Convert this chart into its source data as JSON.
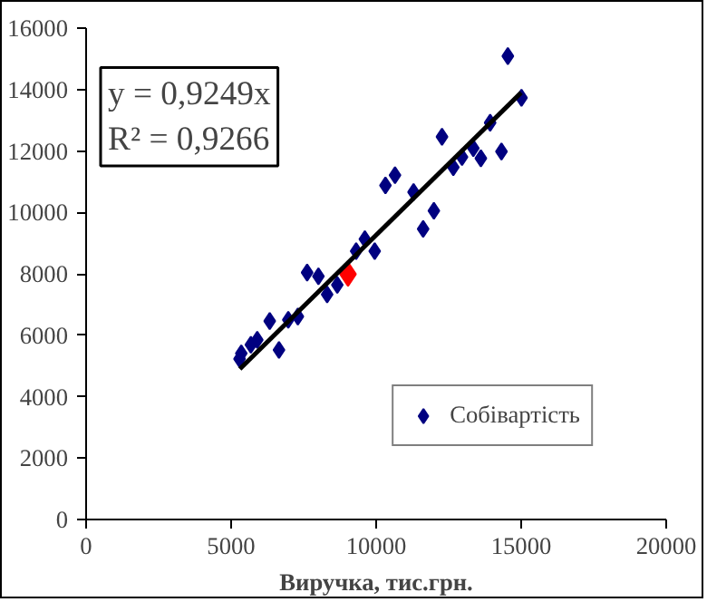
{
  "chart_data": {
    "type": "scatter",
    "xlabel": "Виручка, тис.грн.",
    "xlim": [
      0,
      20000
    ],
    "ylim": [
      0,
      16000
    ],
    "xticks": [
      0,
      5000,
      10000,
      15000,
      20000
    ],
    "yticks": [
      0,
      2000,
      4000,
      6000,
      8000,
      10000,
      12000,
      14000,
      16000
    ],
    "grid": false,
    "legend": "bottom right",
    "annotations": [
      "y = 0,9249x\nR² = 0,9266"
    ],
    "series": [
      {
        "name": "Собівартість",
        "color": "#000080",
        "marker": "diamond",
        "x": [
          14540,
          15010,
          13930,
          12270,
          14320,
          13350,
          12960,
          13610,
          12660,
          10650,
          10320,
          11290,
          11990,
          11620,
          9610,
          9310,
          9950,
          7620,
          8010,
          8660,
          8310,
          7300,
          6970,
          6330,
          6650,
          5900,
          5680,
          5350,
          5290
        ],
        "values": [
          15090,
          13730,
          12920,
          12460,
          11980,
          12090,
          11800,
          11760,
          11470,
          11210,
          10880,
          10660,
          10050,
          9460,
          9130,
          8740,
          8740,
          8040,
          7920,
          7640,
          7330,
          6610,
          6500,
          6460,
          5520,
          5850,
          5690,
          5410,
          5230
        ]
      },
      {
        "color": "#ff0000",
        "marker": "diamond",
        "x": [
          9030
        ],
        "values": [
          7990
        ]
      },
      {
        "color": "#000000",
        "type": "line",
        "x": [
          5300,
          15000
        ],
        "values": [
          4900,
          13900
        ]
      }
    ]
  }
}
